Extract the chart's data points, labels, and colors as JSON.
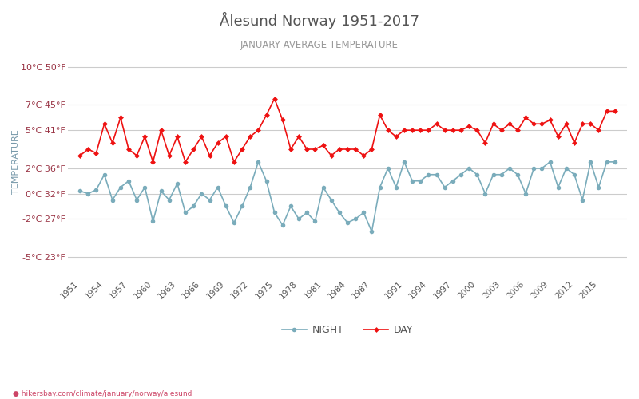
{
  "title": "Ålesund Norway 1951-2017",
  "subtitle": "JANUARY AVERAGE TEMPERATURE",
  "ylabel": "TEMPERATURE",
  "footer": "hikersbay.com/climate/january/norway/alesund",
  "bg_color": "#ffffff",
  "grid_color": "#cccccc",
  "title_color": "#555555",
  "subtitle_color": "#999999",
  "ylabel_color": "#7799aa",
  "ytick_color": "#993344",
  "day_color": "#ee1111",
  "night_color": "#7aacbb",
  "years": [
    1951,
    1952,
    1953,
    1954,
    1955,
    1956,
    1957,
    1958,
    1959,
    1960,
    1961,
    1962,
    1963,
    1964,
    1965,
    1966,
    1967,
    1968,
    1969,
    1970,
    1971,
    1972,
    1973,
    1974,
    1975,
    1976,
    1977,
    1978,
    1979,
    1980,
    1981,
    1982,
    1983,
    1984,
    1985,
    1986,
    1987,
    1988,
    1989,
    1990,
    1991,
    1992,
    1993,
    1994,
    1995,
    1996,
    1997,
    1998,
    1999,
    2000,
    2001,
    2002,
    2003,
    2004,
    2005,
    2006,
    2007,
    2008,
    2009,
    2010,
    2011,
    2012,
    2013,
    2014,
    2015,
    2016,
    2017
  ],
  "day": [
    3.0,
    3.5,
    3.2,
    5.5,
    4.0,
    6.0,
    3.5,
    3.0,
    4.5,
    2.5,
    5.0,
    3.0,
    4.5,
    2.5,
    3.5,
    4.5,
    3.0,
    4.0,
    4.5,
    2.5,
    3.5,
    4.5,
    5.0,
    6.2,
    7.5,
    5.8,
    3.5,
    4.5,
    3.5,
    3.5,
    3.8,
    3.0,
    3.5,
    3.5,
    3.5,
    3.0,
    3.5,
    6.2,
    5.0,
    4.5,
    5.0,
    5.0,
    5.0,
    5.0,
    5.5,
    5.0,
    5.0,
    5.0,
    5.3,
    5.0,
    4.0,
    5.5,
    5.0,
    5.5,
    5.0,
    6.0,
    5.5,
    5.5,
    5.8,
    4.5,
    5.5,
    4.0,
    5.5,
    5.5,
    5.0,
    6.5,
    6.5
  ],
  "night": [
    0.2,
    0.0,
    0.3,
    1.5,
    -0.5,
    0.5,
    1.0,
    -0.5,
    0.5,
    -2.2,
    0.2,
    -0.5,
    0.8,
    -1.5,
    -1.0,
    0.0,
    -0.5,
    0.5,
    -1.0,
    -2.3,
    -1.0,
    0.5,
    2.5,
    1.0,
    -1.5,
    -2.5,
    -1.0,
    -2.0,
    -1.5,
    -2.2,
    0.5,
    -0.5,
    -1.5,
    -2.3,
    -2.0,
    -1.5,
    -3.0,
    0.5,
    2.0,
    0.5,
    2.5,
    1.0,
    1.0,
    1.5,
    1.5,
    0.5,
    1.0,
    1.5,
    2.0,
    1.5,
    0.0,
    1.5,
    1.5,
    2.0,
    1.5,
    0.0,
    2.0,
    2.0,
    2.5,
    0.5,
    2.0,
    1.5,
    -0.5,
    2.5,
    0.5,
    2.5,
    2.5
  ],
  "yticks_c": [
    -5,
    -2,
    0,
    2,
    5,
    7,
    10
  ],
  "yticks_f": [
    23,
    27,
    32,
    36,
    41,
    45,
    50
  ],
  "xtick_years": [
    1951,
    1954,
    1957,
    1960,
    1963,
    1966,
    1969,
    1972,
    1975,
    1978,
    1981,
    1984,
    1987,
    1991,
    1994,
    1997,
    2000,
    2003,
    2006,
    2009,
    2012,
    2015
  ],
  "ylim": [
    -6.5,
    11.5
  ],
  "legend_night": "NIGHT",
  "legend_day": "DAY"
}
